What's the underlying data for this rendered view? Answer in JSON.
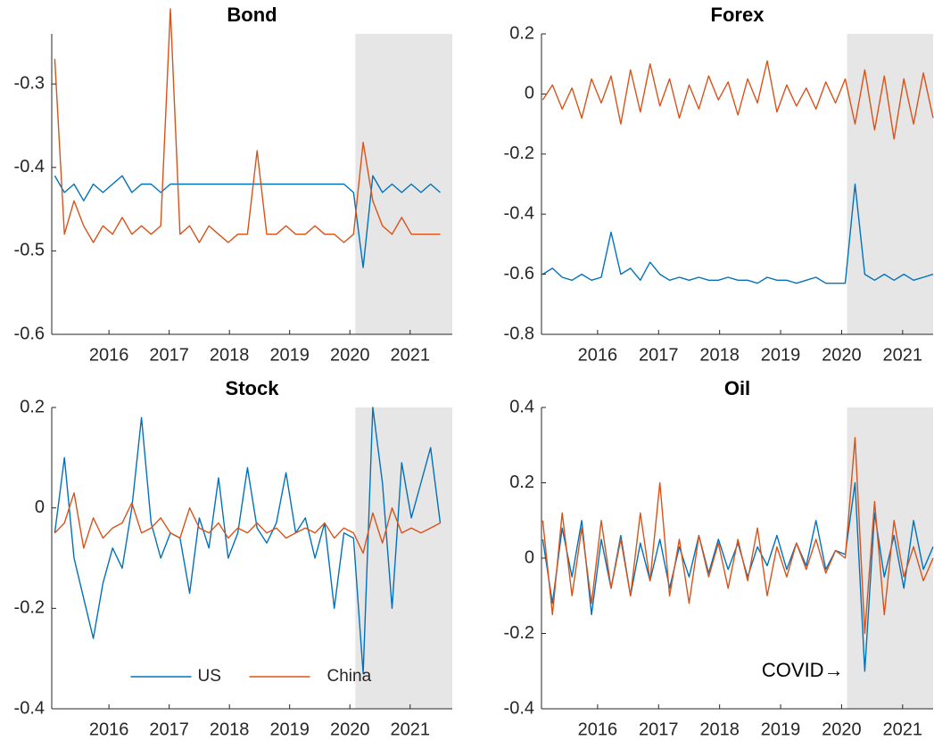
{
  "chart_data": [
    {
      "type": "line",
      "title": "Bond",
      "x": [
        2015.1,
        2015.26,
        2015.42,
        2015.58,
        2015.74,
        2015.9,
        2016.06,
        2016.22,
        2016.38,
        2016.54,
        2016.7,
        2016.86,
        2017.02,
        2017.18,
        2017.34,
        2017.5,
        2017.66,
        2017.82,
        2017.98,
        2018.14,
        2018.3,
        2018.46,
        2018.62,
        2018.78,
        2018.94,
        2019.1,
        2019.26,
        2019.42,
        2019.58,
        2019.74,
        2019.9,
        2020.06,
        2020.22,
        2020.38,
        2020.54,
        2020.7,
        2020.86,
        2021.02,
        2021.18,
        2021.34,
        2021.5
      ],
      "series": [
        {
          "color": "#0072bd",
          "values": [
            -0.41,
            -0.43,
            -0.42,
            -0.44,
            -0.42,
            -0.43,
            -0.42,
            -0.41,
            -0.43,
            -0.42,
            -0.42,
            -0.43,
            -0.42,
            -0.42,
            -0.42,
            -0.42,
            -0.42,
            -0.42,
            -0.42,
            -0.42,
            -0.42,
            -0.42,
            -0.42,
            -0.42,
            -0.42,
            -0.42,
            -0.42,
            -0.42,
            -0.42,
            -0.42,
            -0.42,
            -0.43,
            -0.52,
            -0.41,
            -0.43,
            -0.42,
            -0.43,
            -0.42,
            -0.43,
            -0.42,
            -0.43
          ]
        },
        {
          "color": "#d95319",
          "values": [
            -0.27,
            -0.48,
            -0.44,
            -0.47,
            -0.49,
            -0.47,
            -0.48,
            -0.46,
            -0.48,
            -0.47,
            -0.48,
            -0.47,
            -0.21,
            -0.48,
            -0.47,
            -0.49,
            -0.47,
            -0.48,
            -0.49,
            -0.48,
            -0.48,
            -0.38,
            -0.48,
            -0.48,
            -0.47,
            -0.48,
            -0.48,
            -0.47,
            -0.48,
            -0.48,
            -0.49,
            -0.48,
            -0.37,
            -0.44,
            -0.47,
            -0.48,
            -0.46,
            -0.48,
            -0.48,
            -0.48,
            -0.48
          ]
        }
      ],
      "xlim": [
        2015.05,
        2021.7
      ],
      "xticks": [
        2016,
        2017,
        2018,
        2019,
        2020,
        2021
      ],
      "ylim": [
        -0.6,
        -0.24
      ],
      "yticks": [
        -0.6,
        -0.5,
        -0.4,
        -0.3
      ],
      "shade_start": 2020.09
    },
    {
      "type": "line",
      "title": "Forex",
      "x": [
        2015.1,
        2015.26,
        2015.42,
        2015.58,
        2015.74,
        2015.9,
        2016.06,
        2016.22,
        2016.38,
        2016.54,
        2016.7,
        2016.86,
        2017.02,
        2017.18,
        2017.34,
        2017.5,
        2017.66,
        2017.82,
        2017.98,
        2018.14,
        2018.3,
        2018.46,
        2018.62,
        2018.78,
        2018.94,
        2019.1,
        2019.26,
        2019.42,
        2019.58,
        2019.74,
        2019.9,
        2020.06,
        2020.22,
        2020.38,
        2020.54,
        2020.7,
        2020.86,
        2021.02,
        2021.18,
        2021.34,
        2021.5
      ],
      "series": [
        {
          "color": "#0072bd",
          "values": [
            -0.6,
            -0.58,
            -0.61,
            -0.62,
            -0.6,
            -0.62,
            -0.61,
            -0.46,
            -0.6,
            -0.58,
            -0.62,
            -0.56,
            -0.6,
            -0.62,
            -0.61,
            -0.62,
            -0.61,
            -0.62,
            -0.62,
            -0.61,
            -0.62,
            -0.62,
            -0.63,
            -0.61,
            -0.62,
            -0.62,
            -0.63,
            -0.62,
            -0.61,
            -0.63,
            -0.63,
            -0.63,
            -0.3,
            -0.6,
            -0.62,
            -0.6,
            -0.62,
            -0.6,
            -0.62,
            -0.61,
            -0.6
          ]
        },
        {
          "color": "#d95319",
          "values": [
            -0.02,
            0.03,
            -0.05,
            0.02,
            -0.08,
            0.05,
            -0.03,
            0.06,
            -0.1,
            0.08,
            -0.06,
            0.1,
            -0.04,
            0.05,
            -0.08,
            0.03,
            -0.05,
            0.06,
            -0.02,
            0.04,
            -0.07,
            0.05,
            -0.03,
            0.11,
            -0.06,
            0.03,
            -0.04,
            0.02,
            -0.05,
            0.04,
            -0.03,
            0.05,
            -0.1,
            0.08,
            -0.12,
            0.06,
            -0.15,
            0.05,
            -0.1,
            0.07,
            -0.08
          ]
        }
      ],
      "xlim": [
        2015.08,
        2021.5
      ],
      "xticks": [
        2016,
        2017,
        2018,
        2019,
        2020,
        2021
      ],
      "ylim": [
        -0.8,
        0.2
      ],
      "yticks": [
        -0.8,
        -0.6,
        -0.4,
        -0.2,
        0,
        0.2
      ],
      "shade_start": 2020.09
    },
    {
      "type": "line",
      "title": "Stock",
      "x": [
        2015.1,
        2015.26,
        2015.42,
        2015.58,
        2015.74,
        2015.9,
        2016.06,
        2016.22,
        2016.38,
        2016.54,
        2016.7,
        2016.86,
        2017.02,
        2017.18,
        2017.34,
        2017.5,
        2017.66,
        2017.82,
        2017.98,
        2018.14,
        2018.3,
        2018.46,
        2018.62,
        2018.78,
        2018.94,
        2019.1,
        2019.26,
        2019.42,
        2019.58,
        2019.74,
        2019.9,
        2020.06,
        2020.22,
        2020.38,
        2020.54,
        2020.7,
        2020.86,
        2021.02,
        2021.18,
        2021.34,
        2021.5
      ],
      "series": [
        {
          "name": "US",
          "color": "#0072bd",
          "values": [
            -0.05,
            0.1,
            -0.1,
            -0.18,
            -0.26,
            -0.15,
            -0.08,
            -0.12,
            0.0,
            0.18,
            -0.03,
            -0.1,
            -0.05,
            -0.06,
            -0.17,
            -0.02,
            -0.08,
            0.06,
            -0.1,
            -0.05,
            0.08,
            -0.04,
            -0.07,
            -0.03,
            0.07,
            -0.05,
            -0.02,
            -0.1,
            -0.03,
            -0.2,
            -0.05,
            -0.06,
            -0.33,
            0.2,
            0.05,
            -0.2,
            0.09,
            -0.02,
            0.05,
            0.12,
            -0.03
          ]
        },
        {
          "name": "China",
          "color": "#d95319",
          "values": [
            -0.05,
            -0.03,
            0.03,
            -0.08,
            -0.02,
            -0.06,
            -0.04,
            -0.03,
            0.01,
            -0.05,
            -0.04,
            -0.02,
            -0.05,
            -0.06,
            0.0,
            -0.04,
            -0.05,
            -0.03,
            -0.06,
            -0.04,
            -0.05,
            -0.03,
            -0.05,
            -0.04,
            -0.06,
            -0.05,
            -0.04,
            -0.05,
            -0.03,
            -0.06,
            -0.04,
            -0.05,
            -0.09,
            -0.01,
            -0.07,
            0.0,
            -0.05,
            -0.04,
            -0.05,
            -0.04,
            -0.03
          ]
        }
      ],
      "xlim": [
        2015.05,
        2021.7
      ],
      "xticks": [
        2016,
        2017,
        2018,
        2019,
        2020,
        2021
      ],
      "ylim": [
        -0.4,
        0.2
      ],
      "yticks": [
        -0.4,
        -0.2,
        0,
        0.2
      ],
      "shade_start": 2020.09,
      "legend": "lower center"
    },
    {
      "type": "line",
      "title": "Oil",
      "x": [
        2015.1,
        2015.26,
        2015.42,
        2015.58,
        2015.74,
        2015.9,
        2016.06,
        2016.22,
        2016.38,
        2016.54,
        2016.7,
        2016.86,
        2017.02,
        2017.18,
        2017.34,
        2017.5,
        2017.66,
        2017.82,
        2017.98,
        2018.14,
        2018.3,
        2018.46,
        2018.62,
        2018.78,
        2018.94,
        2019.1,
        2019.26,
        2019.42,
        2019.58,
        2019.74,
        2019.9,
        2020.06,
        2020.22,
        2020.38,
        2020.54,
        2020.7,
        2020.86,
        2021.02,
        2021.18,
        2021.34,
        2021.5
      ],
      "series": [
        {
          "color": "#0072bd",
          "values": [
            0.05,
            -0.12,
            0.08,
            -0.05,
            0.1,
            -0.15,
            0.05,
            -0.08,
            0.06,
            -0.1,
            0.04,
            -0.06,
            0.05,
            -0.08,
            0.03,
            -0.05,
            0.06,
            -0.04,
            0.05,
            -0.03,
            0.04,
            -0.05,
            0.03,
            -0.02,
            0.06,
            -0.03,
            0.04,
            -0.02,
            0.1,
            -0.03,
            0.02,
            0.01,
            0.2,
            -0.3,
            0.12,
            -0.05,
            0.06,
            -0.08,
            0.1,
            -0.03,
            0.03
          ]
        },
        {
          "color": "#d95319",
          "values": [
            0.1,
            -0.15,
            0.12,
            -0.1,
            0.08,
            -0.12,
            0.1,
            -0.08,
            0.05,
            -0.1,
            0.12,
            -0.06,
            0.2,
            -0.1,
            0.05,
            -0.12,
            0.06,
            -0.05,
            0.04,
            -0.08,
            0.05,
            -0.06,
            0.08,
            -0.1,
            0.03,
            -0.05,
            0.04,
            -0.03,
            0.05,
            -0.04,
            0.02,
            0.0,
            0.32,
            -0.2,
            0.15,
            -0.15,
            0.1,
            -0.05,
            0.03,
            -0.06,
            0.0
          ]
        }
      ],
      "xlim": [
        2015.08,
        2021.5
      ],
      "xticks": [
        2016,
        2017,
        2018,
        2019,
        2020,
        2021
      ],
      "ylim": [
        -0.4,
        0.4
      ],
      "yticks": [
        -0.4,
        -0.2,
        0,
        0.2,
        0.4
      ],
      "shade_start": 2020.09,
      "annotation": "COVID→"
    }
  ]
}
